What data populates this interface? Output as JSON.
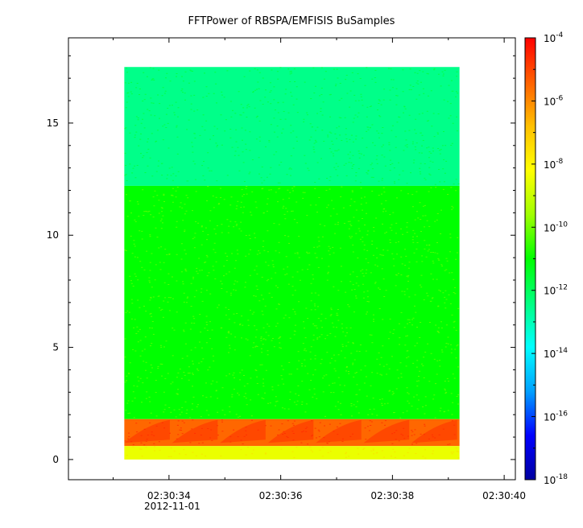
{
  "chart_data": {
    "type": "heatmap",
    "title": "FFTPower of RBSPA/EMFISIS  BuSamples",
    "xlabel": "",
    "ylabel": "",
    "x_tick_labels": [
      "02:30:34",
      "02:30:36",
      "02:30:38",
      "02:30:40"
    ],
    "x_date_label": "2012-11-01",
    "x_range": [
      "02:30:32.2",
      "02:30:40.2"
    ],
    "data_time_range": [
      "02:30:33.2",
      "02:30:39.2"
    ],
    "y_ticks": [
      0,
      5,
      10,
      15
    ],
    "ylim": [
      -0.9,
      18.8
    ],
    "data_y_range": [
      0,
      17.5
    ],
    "colorbar": {
      "scale": "log",
      "range": [
        1e-18,
        0.0001
      ],
      "tick_base": "10",
      "tick_exponents": [
        "-4",
        "-6",
        "-8",
        "-10",
        "-12",
        "-14",
        "-16",
        "-18"
      ],
      "colors": [
        "#0000a0",
        "#0000ff",
        "#00a0ff",
        "#00ffff",
        "#00ff80",
        "#00ff00",
        "#a0ff00",
        "#ffff00",
        "#ffc000",
        "#ff6000",
        "#ff0000"
      ]
    },
    "bands": [
      {
        "y_range": [
          12.2,
          17.5
        ],
        "level_log10": -12.5
      },
      {
        "y_range": [
          1.8,
          12.2
        ],
        "level_log10": -11.0
      },
      {
        "y_range": [
          0.6,
          1.8
        ],
        "level_log10": -5.5
      },
      {
        "y_range": [
          0.0,
          0.6
        ],
        "level_log10": -8.5
      }
    ]
  }
}
